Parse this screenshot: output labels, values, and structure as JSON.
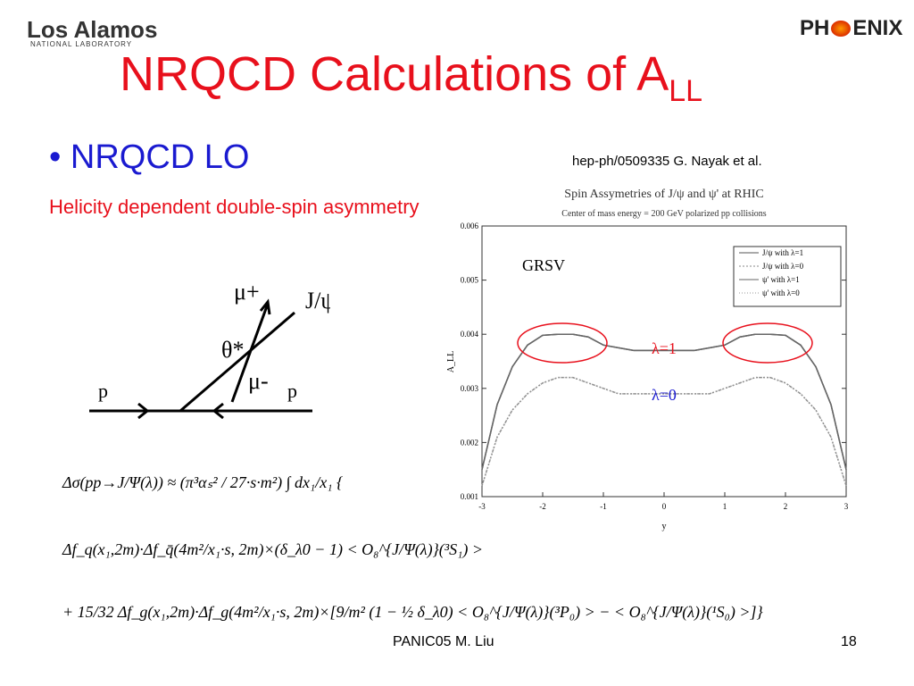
{
  "header": {
    "lab_logo": "Los Alamos",
    "lab_logo_sub": "NATIONAL LABORATORY",
    "experiment_logo_left": "PH",
    "experiment_logo_right": "ENIX"
  },
  "title": {
    "main": "NRQCD Calculations of A",
    "subscript": "LL"
  },
  "bullet": "NRQCD LO",
  "subtitle": "Helicity dependent double-spin asymmetry",
  "reference": "hep-ph/0509335 G. Nayak et al.",
  "diagram": {
    "mu_plus": "μ+",
    "jpsi": "J/ψ",
    "theta": "θ*",
    "mu_minus": "μ-",
    "p_left": "p",
    "p_right": "p"
  },
  "plot": {
    "type": "line",
    "title": "Spin Assymetries of J/ψ and ψ' at RHIC",
    "subtitle": "Center of mass energy = 200 GeV polarized pp collisions",
    "x_label": "y",
    "y_label": "A_LL",
    "x": [
      -3,
      -2.75,
      -2.5,
      -2.25,
      -2,
      -1.75,
      -1.5,
      -1.25,
      -1,
      -0.75,
      -0.5,
      -0.25,
      0,
      0.25,
      0.5,
      0.75,
      1,
      1.25,
      1.5,
      1.75,
      2,
      2.25,
      2.5,
      2.75,
      3
    ],
    "series": [
      {
        "name": "J/ψ with λ=1",
        "color": "#555555",
        "dash": "none",
        "values": [
          0.0015,
          0.0027,
          0.0034,
          0.0038,
          0.00398,
          0.004,
          0.004,
          0.00395,
          0.0038,
          0.00375,
          0.0037,
          0.0037,
          0.0037,
          0.0037,
          0.0037,
          0.00375,
          0.0038,
          0.00395,
          0.004,
          0.004,
          0.00398,
          0.0038,
          0.0034,
          0.0027,
          0.0015
        ]
      },
      {
        "name": "J/ψ with λ=0",
        "color": "#888888",
        "dash": "2 2",
        "values": [
          0.0012,
          0.0021,
          0.0026,
          0.0029,
          0.0031,
          0.0032,
          0.0032,
          0.0031,
          0.003,
          0.0029,
          0.0029,
          0.0029,
          0.0029,
          0.0029,
          0.0029,
          0.0029,
          0.003,
          0.0031,
          0.0032,
          0.0032,
          0.0031,
          0.0029,
          0.0026,
          0.0021,
          0.0012
        ]
      },
      {
        "name": "ψ' with λ=1",
        "color": "#666666",
        "dash": "none",
        "values": [
          0.0015,
          0.0027,
          0.0034,
          0.0038,
          0.00398,
          0.004,
          0.004,
          0.00395,
          0.0038,
          0.00375,
          0.0037,
          0.0037,
          0.0037,
          0.0037,
          0.0037,
          0.00375,
          0.0038,
          0.00395,
          0.004,
          0.004,
          0.00398,
          0.0038,
          0.0034,
          0.0027,
          0.0015
        ]
      },
      {
        "name": "ψ' with λ=0",
        "color": "#999999",
        "dash": "1 2",
        "values": [
          0.0012,
          0.0021,
          0.0026,
          0.0029,
          0.0031,
          0.0032,
          0.0032,
          0.0031,
          0.003,
          0.0029,
          0.0029,
          0.0029,
          0.0029,
          0.0029,
          0.0029,
          0.0029,
          0.003,
          0.0031,
          0.0032,
          0.0032,
          0.0031,
          0.0029,
          0.0026,
          0.0021,
          0.0012
        ]
      }
    ],
    "xlim": [
      -3,
      3
    ],
    "xticks": [
      -3,
      -2,
      -1,
      0,
      1,
      2,
      3
    ],
    "ylim": [
      0.001,
      0.006
    ],
    "yticks": [
      0.001,
      0.002,
      0.003,
      0.004,
      0.005,
      0.006
    ],
    "annotations": {
      "pdf": "GRSV",
      "lambda1": "λ=1",
      "lambda0": "λ=0"
    }
  },
  "equations": [
    "Δσ(pp→J/Ψ(λ)) ≈ (π³αₛ² / 27·s·m²) ∫ dx₁/x₁ {",
    "Δf_q(x₁,2m)·Δf_q̄(4m²/x₁·s, 2m)×(δ_λ0 − 1) < O₈^{J/Ψ(λ)}(³S₁) >",
    "+ 15/32 Δf_g(x₁,2m)·Δf_g(4m²/x₁·s, 2m)×[9/m² (1 − ½ δ_λ0) < O₈^{J/Ψ(λ)}(³P₀) > − < O₈^{J/Ψ(λ)}(¹S₀) >]}"
  ],
  "footer": {
    "presenter": "PANIC05  M. Liu",
    "page": "18"
  }
}
